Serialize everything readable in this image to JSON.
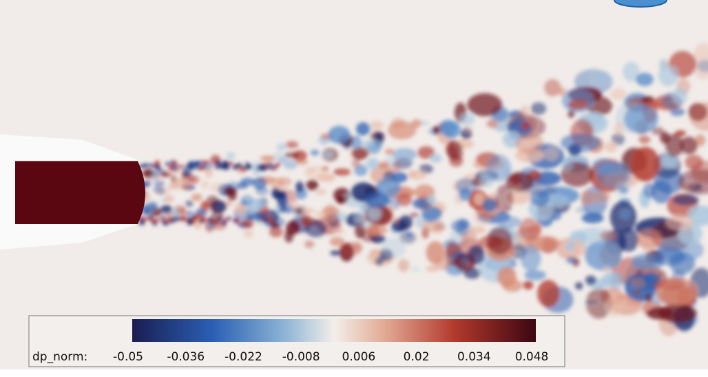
{
  "colorbar": {
    "label": "dp_norm:",
    "lim": [
      -0.05,
      0.05
    ],
    "ticks": [
      -0.05,
      -0.036,
      -0.022,
      -0.008,
      0.006,
      0.02,
      0.034,
      0.048
    ]
  }
}
